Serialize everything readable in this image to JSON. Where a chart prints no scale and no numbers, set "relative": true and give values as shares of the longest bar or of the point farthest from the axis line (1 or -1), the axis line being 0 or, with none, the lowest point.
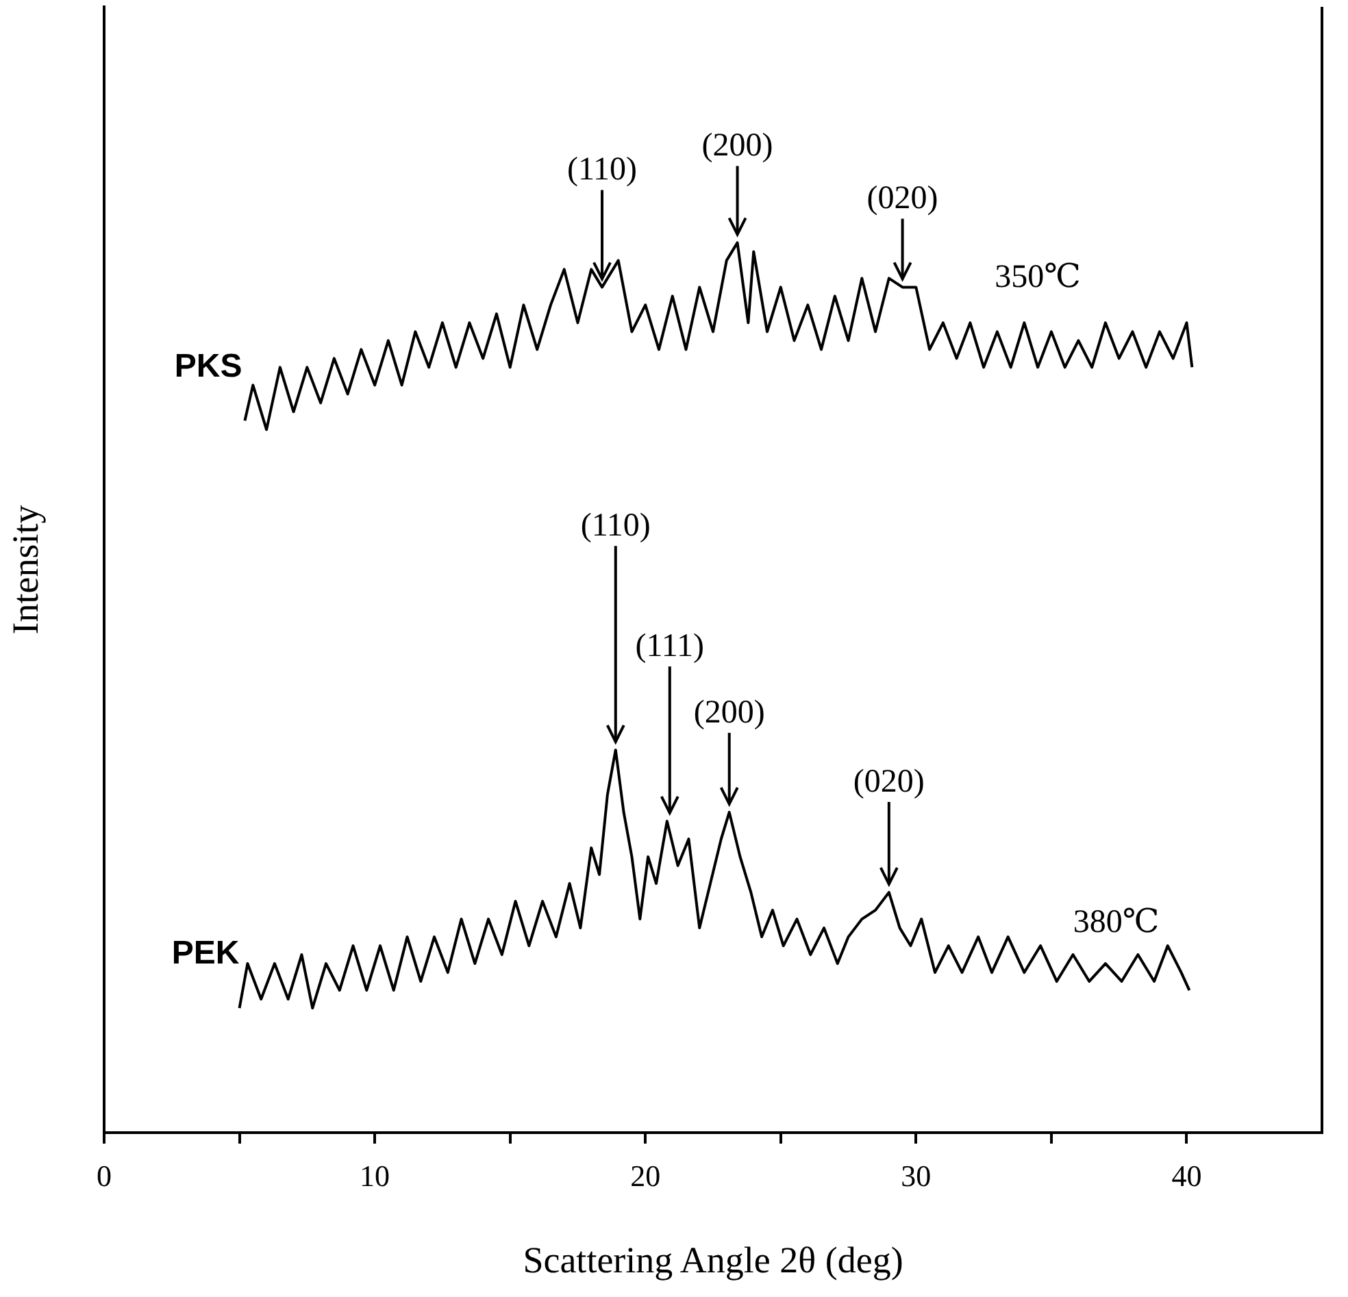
{
  "chart_data": {
    "type": "line",
    "relative": true,
    "xlabel": "Scattering Angle 2θ (deg)",
    "ylabel": "Intensity",
    "xlim": [
      0,
      45
    ],
    "xticks": [
      0,
      {
        "value": 5,
        "label": null
      },
      10,
      {
        "value": 15,
        "label": null
      },
      20,
      {
        "value": 25,
        "label": null
      },
      30,
      {
        "value": 35,
        "label": null
      },
      40
    ],
    "grid": false,
    "legend": false,
    "series": [
      {
        "name": "PKS",
        "color": "#000000",
        "x": [
          5.2,
          5.5,
          6.0,
          6.5,
          7.0,
          7.5,
          8.0,
          8.5,
          9.0,
          9.5,
          10.0,
          10.5,
          11.0,
          11.5,
          12.0,
          12.5,
          13.0,
          13.5,
          14.0,
          14.5,
          15.0,
          15.5,
          16.0,
          16.5,
          17.0,
          17.5,
          18.0,
          18.4,
          19.0,
          19.5,
          20.0,
          20.5,
          21.0,
          21.5,
          22.0,
          22.5,
          23.0,
          23.4,
          23.8,
          24.0,
          24.5,
          25.0,
          25.5,
          26.0,
          26.5,
          27.0,
          27.5,
          28.0,
          28.5,
          29.0,
          29.5,
          30.0,
          30.5,
          31.0,
          31.5,
          32.0,
          32.5,
          33.0,
          33.5,
          34.0,
          34.5,
          35.0,
          35.5,
          36.0,
          36.5,
          37.0,
          37.5,
          38.0,
          38.5,
          39.0,
          39.5,
          40.0,
          40.2
        ],
        "values": [
          0.8,
          0.84,
          0.79,
          0.86,
          0.81,
          0.86,
          0.82,
          0.87,
          0.83,
          0.88,
          0.84,
          0.89,
          0.84,
          0.9,
          0.86,
          0.91,
          0.86,
          0.91,
          0.87,
          0.92,
          0.86,
          0.93,
          0.88,
          0.93,
          0.97,
          0.91,
          0.97,
          0.95,
          0.98,
          0.9,
          0.93,
          0.88,
          0.94,
          0.88,
          0.95,
          0.9,
          0.98,
          1.0,
          0.91,
          0.99,
          0.9,
          0.95,
          0.89,
          0.93,
          0.88,
          0.94,
          0.89,
          0.96,
          0.9,
          0.96,
          0.95,
          0.95,
          0.88,
          0.91,
          0.87,
          0.91,
          0.86,
          0.9,
          0.86,
          0.91,
          0.86,
          0.9,
          0.86,
          0.89,
          0.86,
          0.91,
          0.87,
          0.9,
          0.86,
          0.9,
          0.87,
          0.91,
          0.86
        ]
      },
      {
        "name": "PEK",
        "color": "#000000",
        "x": [
          5.0,
          5.3,
          5.8,
          6.3,
          6.8,
          7.3,
          7.7,
          8.2,
          8.7,
          9.2,
          9.7,
          10.2,
          10.7,
          11.2,
          11.7,
          12.2,
          12.7,
          13.2,
          13.7,
          14.2,
          14.7,
          15.2,
          15.7,
          16.2,
          16.7,
          17.2,
          17.6,
          18.0,
          18.3,
          18.6,
          18.9,
          19.2,
          19.5,
          19.8,
          20.1,
          20.4,
          20.8,
          21.2,
          21.6,
          22.0,
          22.4,
          22.8,
          23.1,
          23.5,
          23.9,
          24.3,
          24.7,
          25.1,
          25.6,
          26.1,
          26.6,
          27.1,
          27.5,
          28.0,
          28.5,
          29.0,
          29.4,
          29.8,
          30.2,
          30.7,
          31.2,
          31.7,
          32.3,
          32.8,
          33.4,
          34.0,
          34.6,
          35.2,
          35.8,
          36.4,
          37.0,
          37.6,
          38.2,
          38.8,
          39.3,
          39.8,
          40.1
        ],
        "values": [
          0.14,
          0.19,
          0.15,
          0.19,
          0.15,
          0.2,
          0.14,
          0.19,
          0.16,
          0.21,
          0.16,
          0.21,
          0.16,
          0.22,
          0.17,
          0.22,
          0.18,
          0.24,
          0.19,
          0.24,
          0.2,
          0.26,
          0.21,
          0.26,
          0.22,
          0.28,
          0.23,
          0.32,
          0.29,
          0.38,
          0.43,
          0.36,
          0.31,
          0.24,
          0.31,
          0.28,
          0.35,
          0.3,
          0.33,
          0.23,
          0.28,
          0.33,
          0.36,
          0.31,
          0.27,
          0.22,
          0.25,
          0.21,
          0.24,
          0.2,
          0.23,
          0.19,
          0.22,
          0.24,
          0.25,
          0.27,
          0.23,
          0.21,
          0.24,
          0.18,
          0.21,
          0.18,
          0.22,
          0.18,
          0.22,
          0.18,
          0.21,
          0.17,
          0.2,
          0.17,
          0.19,
          0.17,
          0.2,
          0.17,
          0.21,
          0.18,
          0.16
        ]
      }
    ],
    "annotations": [
      {
        "text": "(110)",
        "x": 18.4,
        "y": 0.95
      },
      {
        "text": "(200)",
        "x": 23.4,
        "y": 1.0
      },
      {
        "text": "(020)",
        "x": 29.5,
        "y": 0.95
      },
      "350℃",
      {
        "text": "(110)",
        "x": 18.9,
        "y": 0.43
      },
      {
        "text": "(111)",
        "x": 20.9,
        "y": 0.35
      },
      {
        "text": "(200)",
        "x": 23.1,
        "y": 0.36
      },
      {
        "text": "(020)",
        "x": 29.0,
        "y": 0.27
      },
      "380℃"
    ]
  }
}
